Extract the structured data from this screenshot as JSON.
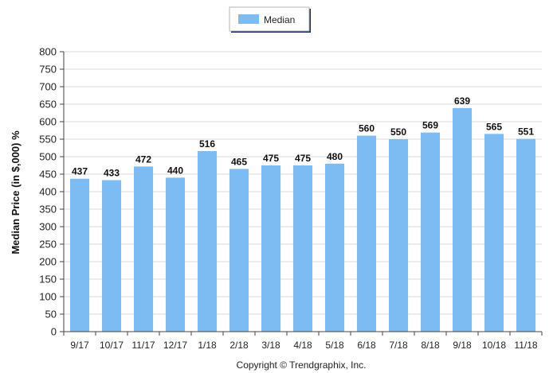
{
  "chart_data": {
    "type": "bar",
    "categories": [
      "9/17",
      "10/17",
      "11/17",
      "12/17",
      "1/18",
      "2/18",
      "3/18",
      "4/18",
      "5/18",
      "6/18",
      "7/18",
      "8/18",
      "9/18",
      "10/18",
      "11/18"
    ],
    "series": [
      {
        "name": "Median",
        "values": [
          437,
          433,
          472,
          440,
          516,
          465,
          475,
          475,
          480,
          560,
          550,
          569,
          639,
          565,
          551
        ]
      }
    ],
    "data_labels": [
      "437",
      "433",
      "472",
      "440",
      "516",
      "465",
      "475",
      "475",
      "480",
      "560",
      "550",
      "569",
      "639",
      "565",
      "551"
    ],
    "title": "",
    "xlabel": "",
    "ylabel": "Median Price (in $,000) %",
    "ylim": [
      0,
      800
    ],
    "yticks": [
      0,
      50,
      100,
      150,
      200,
      250,
      300,
      350,
      400,
      450,
      500,
      550,
      600,
      650,
      700,
      750,
      800
    ],
    "ytick_labels": [
      "0",
      "50",
      "100",
      "150",
      "200",
      "250",
      "300",
      "350",
      "400",
      "450",
      "500",
      "550",
      "600",
      "650",
      "700",
      "750",
      "800"
    ],
    "grid": true,
    "legend_position": "top-center",
    "bar_color": "#7dbcf3",
    "grid_color": "#d9d9d9"
  },
  "legend": {
    "label": "Median"
  },
  "footer": {
    "text": "Copyright © Trendgraphix, Inc."
  }
}
